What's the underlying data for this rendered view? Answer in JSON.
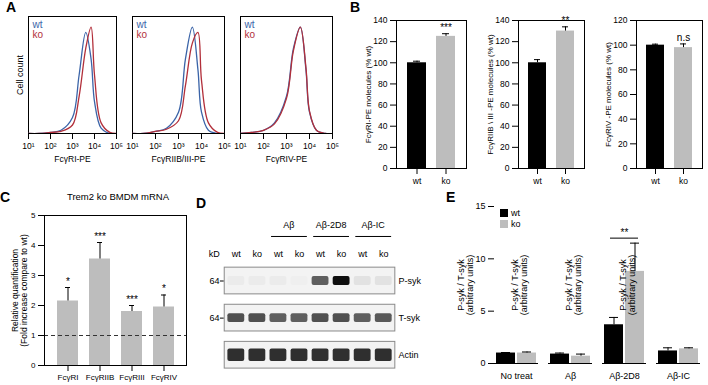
{
  "chart_data": [
    {
      "type": "line",
      "panel_label": "A",
      "x_label": "FcγRI-PE",
      "y_label": "Cell count",
      "log": "x",
      "xlim": [
        10,
        100000
      ],
      "xticks": [
        {
          "value": 10,
          "label": "10¹"
        },
        {
          "value": 100,
          "label": "10²"
        },
        {
          "value": 1000,
          "label": "10³"
        },
        {
          "value": 10000,
          "label": "10⁴"
        },
        {
          "value": 100000,
          "label": "10⁵"
        }
      ],
      "ylim": [
        0,
        110
      ],
      "tick_labels": "x",
      "legend": "top-left",
      "x": [
        10,
        30,
        100,
        300,
        1000,
        2000,
        4000,
        7000,
        10000,
        20000,
        50000,
        100000
      ],
      "series": [
        {
          "name": "wt",
          "color": "#3b64a8",
          "values": [
            0,
            0,
            1,
            3,
            15,
            55,
            95,
            70,
            30,
            5,
            0,
            0
          ]
        },
        {
          "name": "ko",
          "color": "#b22f3a",
          "values": [
            0,
            0,
            1,
            2,
            8,
            35,
            80,
            100,
            55,
            10,
            1,
            0
          ]
        }
      ]
    },
    {
      "type": "line",
      "x_label": "FcγRIIB/III-PE",
      "log": "x",
      "xlim": [
        10,
        100000
      ],
      "xticks": [
        {
          "value": 10,
          "label": "10¹"
        },
        {
          "value": 100,
          "label": "10²"
        },
        {
          "value": 1000,
          "label": "10³"
        },
        {
          "value": 10000,
          "label": "10⁴"
        },
        {
          "value": 100000,
          "label": "10⁵"
        }
      ],
      "ylim": [
        0,
        110
      ],
      "tick_labels": "x",
      "legend": "top-left",
      "x": [
        10,
        30,
        100,
        300,
        1000,
        2000,
        4000,
        7000,
        10000,
        20000,
        50000,
        100000
      ],
      "series": [
        {
          "name": "wt",
          "color": "#3b64a8",
          "values": [
            0,
            0,
            2,
            5,
            20,
            70,
            100,
            60,
            20,
            3,
            0,
            0
          ]
        },
        {
          "name": "ko",
          "color": "#b22f3a",
          "values": [
            0,
            0,
            2,
            4,
            12,
            45,
            85,
            95,
            50,
            10,
            1,
            0
          ]
        }
      ]
    },
    {
      "type": "line",
      "x_label": "FcγRIV-PE",
      "log": "x",
      "xlim": [
        10,
        100000
      ],
      "xticks": [
        {
          "value": 10,
          "label": "10¹"
        },
        {
          "value": 100,
          "label": "10²"
        },
        {
          "value": 1000,
          "label": "10³"
        },
        {
          "value": 10000,
          "label": "10⁴"
        },
        {
          "value": 100000,
          "label": "10⁵"
        }
      ],
      "ylim": [
        0,
        110
      ],
      "tick_labels": "x",
      "legend": "top-left",
      "x": [
        10,
        30,
        100,
        300,
        1000,
        2000,
        4000,
        7000,
        10000,
        20000,
        50000,
        100000
      ],
      "series": [
        {
          "name": "wt",
          "color": "#3b64a8",
          "values": [
            0,
            1,
            3,
            10,
            35,
            80,
            100,
            60,
            20,
            3,
            0,
            0
          ]
        },
        {
          "name": "ko",
          "color": "#b22f3a",
          "values": [
            0,
            1,
            3,
            9,
            33,
            78,
            100,
            62,
            21,
            3,
            0,
            0
          ]
        }
      ]
    },
    {
      "type": "bar",
      "panel_label": "B",
      "y_label": "FcγRI-PE molecules (% wt)",
      "categories": [
        "wt",
        "ko"
      ],
      "values": [
        100,
        125
      ],
      "errors": [
        1.5,
        2.5
      ],
      "colors": [
        "#000000",
        "#bdbdbd"
      ],
      "ylim": [
        0,
        140
      ],
      "yticks": [
        0,
        20,
        40,
        60,
        80,
        100,
        120,
        140
      ],
      "annotations": [
        {
          "category": "ko",
          "text": "***"
        }
      ]
    },
    {
      "type": "bar",
      "y_label": "FcγRIIB \\ III -PE molecules (% wt)",
      "categories": [
        "wt",
        "ko"
      ],
      "values": [
        100,
        130
      ],
      "errors": [
        3,
        4
      ],
      "colors": [
        "#000000",
        "#bdbdbd"
      ],
      "ylim": [
        0,
        140
      ],
      "yticks": [
        0,
        20,
        40,
        60,
        80,
        100,
        120,
        140
      ],
      "annotations": [
        {
          "category": "ko",
          "text": "**"
        }
      ]
    },
    {
      "type": "bar",
      "y_label": "FcγRIV -PE molecules (% wt)",
      "categories": [
        "wt",
        "ko"
      ],
      "values": [
        100,
        98
      ],
      "errors": [
        0.8,
        3
      ],
      "colors": [
        "#000000",
        "#bdbdbd"
      ],
      "ylim": [
        0,
        120
      ],
      "yticks": [
        0,
        20,
        40,
        60,
        80,
        100,
        120
      ],
      "annotations": [
        {
          "category": "ko",
          "text": "n.s"
        }
      ]
    },
    {
      "type": "bar",
      "panel_label": "C",
      "title": "Trem2 ko BMDM mRNA",
      "y_label": [
        "Relative quantification",
        "(Fold increase compare to wt)"
      ],
      "categories": [
        "FcγRI",
        "FcγRIIB",
        "FcγRIII",
        "FcγRIV"
      ],
      "values": [
        2.15,
        3.55,
        1.8,
        1.95
      ],
      "errors": [
        0.45,
        0.55,
        0.2,
        0.4
      ],
      "color": "#bdbdbd",
      "ylim": [
        0,
        5
      ],
      "yticks": [
        0,
        1,
        2,
        3,
        4,
        5
      ],
      "reference_line": 1,
      "annotations": [
        {
          "category": "FcγRI",
          "text": "*"
        },
        {
          "category": "FcγRIIB",
          "text": "***"
        },
        {
          "category": "FcγRIII",
          "text": "***"
        },
        {
          "category": "FcγRIV",
          "text": "*"
        }
      ]
    },
    {
      "type": "blot",
      "panel_label": "D",
      "mw_unit": "kD",
      "lanes": [
        "wt",
        "ko",
        "wt",
        "ko",
        "wt",
        "ko",
        "wt",
        "ko"
      ],
      "lane_groups": [
        null,
        null,
        "Aβ",
        "Aβ",
        "Aβ-2D8",
        "Aβ-2D8",
        "Aβ-IC",
        "Aβ-IC"
      ],
      "rows": [
        "P-syk",
        "T-syk",
        "Actin"
      ],
      "mw_markers": [
        64,
        64,
        null
      ],
      "intensity": [
        [
          0.15,
          0.15,
          0.15,
          0.12,
          0.7,
          0.95,
          0.2,
          0.2
        ],
        [
          0.75,
          0.75,
          0.7,
          0.7,
          0.75,
          0.75,
          0.7,
          0.72
        ],
        [
          0.85,
          0.85,
          0.85,
          0.85,
          0.85,
          0.85,
          0.85,
          0.85
        ]
      ]
    },
    {
      "type": "bar",
      "panel_label": "E",
      "y_label": [
        "P-syk / T-syk",
        "(arbitrary units)"
      ],
      "categories": [
        "No treat",
        "Aβ",
        "Aβ-2D8",
        "Aβ-IC"
      ],
      "series": [
        {
          "name": "wt",
          "color": "#000000",
          "values": [
            1,
            0.9,
            3.7,
            1.2
          ],
          "errors": [
            0.05,
            0.1,
            0.7,
            0.3
          ]
        },
        {
          "name": "ko",
          "color": "#bdbdbd",
          "values": [
            1,
            0.7,
            8.8,
            1.4
          ],
          "errors": [
            0.1,
            0.2,
            2.7,
            0.1
          ]
        }
      ],
      "ylim": [
        0,
        15
      ],
      "yticks": [
        0,
        5,
        10,
        15
      ],
      "legend": "top-left",
      "annotations": [
        {
          "category": "Aβ-2D8",
          "text": "**"
        }
      ]
    }
  ]
}
